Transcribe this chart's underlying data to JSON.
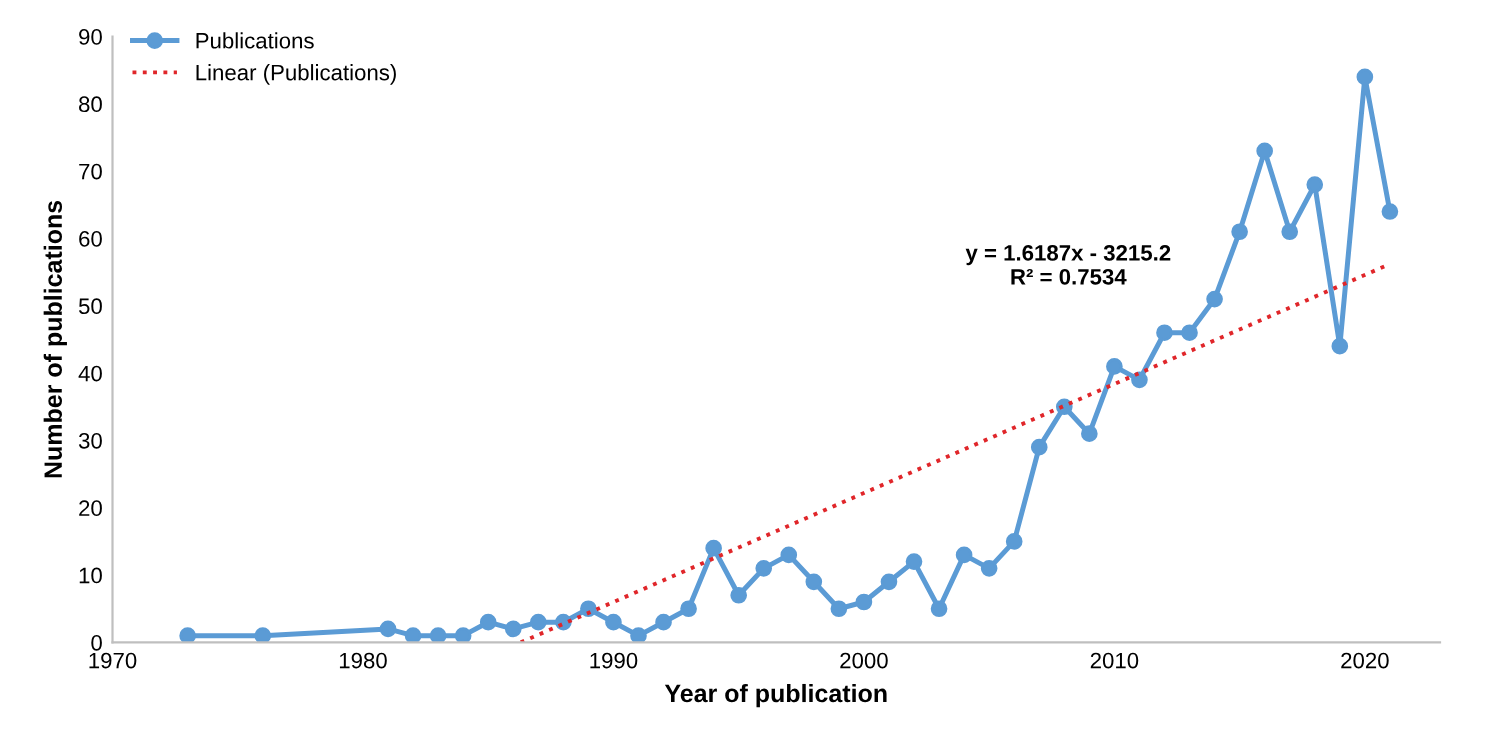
{
  "chart_data": {
    "type": "line",
    "xlabel": "Year of publication",
    "ylabel": "Number of publications",
    "xlim": [
      1970,
      2023
    ],
    "xticks": [
      1970,
      1980,
      1990,
      2000,
      2010,
      2020
    ],
    "ylim": [
      0,
      90
    ],
    "yticks": [
      0,
      10,
      20,
      30,
      40,
      50,
      60,
      70,
      80,
      90
    ],
    "grid": false,
    "legend": "top left",
    "series": [
      {
        "name": "Publications",
        "color": "#5b9bd5",
        "marker": "circle",
        "line_style": "solid",
        "x": [
          1973,
          1976,
          1981,
          1982,
          1983,
          1984,
          1985,
          1986,
          1987,
          1988,
          1989,
          1990,
          1991,
          1992,
          1993,
          1994,
          1995,
          1996,
          1997,
          1998,
          1999,
          2000,
          2001,
          2002,
          2003,
          2004,
          2005,
          2006,
          2007,
          2008,
          2009,
          2010,
          2011,
          2012,
          2013,
          2014,
          2015,
          2016,
          2017,
          2018,
          2019,
          2020,
          2021
        ],
        "values": [
          1,
          1,
          2,
          1,
          1,
          1,
          3,
          2,
          3,
          3,
          5,
          3,
          1,
          3,
          5,
          14,
          7,
          11,
          13,
          9,
          5,
          6,
          9,
          12,
          5,
          13,
          11,
          15,
          29,
          35,
          31,
          41,
          39,
          46,
          46,
          51,
          61,
          73,
          61,
          68,
          44,
          84,
          64
        ]
      },
      {
        "name": "Linear (Publications)",
        "type": "line",
        "color": "#e0262a",
        "marker": "none",
        "line_style": "dotted",
        "x": [
          1986.3,
          2021
        ],
        "values": [
          0,
          56.2
        ]
      }
    ],
    "annotations": [
      "y = 1.6187x - 3215.2\nR² = 0.7534"
    ]
  }
}
